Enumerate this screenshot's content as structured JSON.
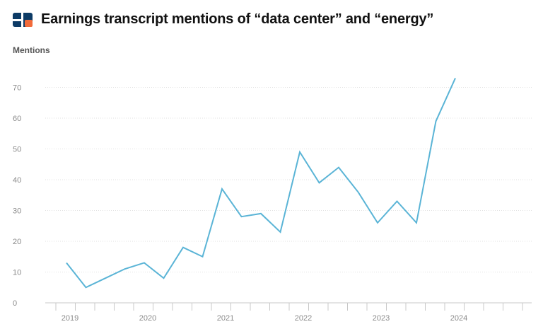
{
  "header": {
    "title": "Earnings transcript mentions of “data center” and “energy”"
  },
  "logo": {
    "name": "brand-logo-icon",
    "colors": [
      "#0d3b66",
      "#ffffff",
      "#f26b3a"
    ]
  },
  "chart_data": {
    "type": "line",
    "title": "Earnings transcript mentions of “data center” and “energy”",
    "xlabel": "",
    "ylabel": "Mentions",
    "x": [
      "2019 Q1",
      "2019 Q2",
      "2019 Q3",
      "2019 Q4",
      "2020 Q1",
      "2020 Q2",
      "2020 Q3",
      "2020 Q4",
      "2021 Q1",
      "2021 Q2",
      "2021 Q3",
      "2021 Q4",
      "2022 Q1",
      "2022 Q2",
      "2022 Q3",
      "2022 Q4",
      "2023 Q1",
      "2023 Q2",
      "2023 Q3",
      "2023 Q4",
      "2024 Q1"
    ],
    "series": [
      {
        "color": "#5ab4d6",
        "values": [
          13,
          5,
          8,
          11,
          13,
          8,
          18,
          15,
          37,
          28,
          29,
          23,
          49,
          39,
          44,
          36,
          26,
          33,
          26,
          59,
          73
        ]
      }
    ],
    "x_tick_labels": [
      "2019",
      "2020",
      "2021",
      "2022",
      "2023",
      "2024"
    ],
    "y_ticks": [
      0,
      10,
      20,
      30,
      40,
      50,
      60,
      70
    ],
    "ylim": [
      0,
      80
    ],
    "grid": true,
    "grid_color": "#e2e2e2",
    "axis_color": "#c8c8c8"
  }
}
